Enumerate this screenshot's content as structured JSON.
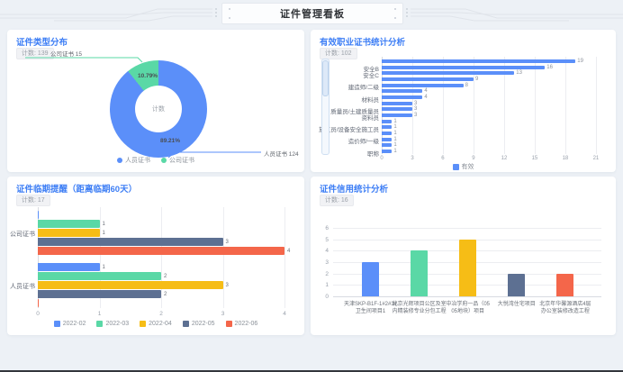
{
  "header": {
    "title": "证件管理看板"
  },
  "panels": [
    {
      "title": "证件类型分布",
      "count_badge": "计数: 139"
    },
    {
      "title": "有效职业证书统计分析",
      "count_badge": "计数: 102"
    },
    {
      "title": "证件临期提醒（距离临期60天）",
      "count_badge": "计数: 17"
    },
    {
      "title": "证件信用统计分析",
      "count_badge": "计数: 16"
    }
  ],
  "colors": {
    "accent_title": "#3d7ef5",
    "blue": "#5B8FF9",
    "green": "#5AD8A6",
    "yellow": "#F6BD16",
    "slate": "#5D7092",
    "red": "#F4664A"
  },
  "chart_data": [
    {
      "type": "pie",
      "title": "证件类型分布",
      "center_label": "计数",
      "total": 139,
      "slices": [
        {
          "name": "人员证书",
          "value": 124,
          "pct_label": "89.21%",
          "color": "#5B8FF9"
        },
        {
          "name": "公司证书",
          "value": 15,
          "pct_label": "10.79%",
          "color": "#5AD8A6"
        }
      ],
      "callouts": [
        {
          "text": "公司证书 15",
          "color": "#5AD8A6"
        },
        {
          "text": "人员证书 124",
          "color": "#5B8FF9"
        }
      ],
      "legend": [
        {
          "name": "人员证书",
          "color": "#5B8FF9"
        },
        {
          "name": "公司证书",
          "color": "#5AD8A6"
        }
      ],
      "legend_position": "bottom"
    },
    {
      "type": "bar",
      "orientation": "horizontal",
      "title": "有效职业证书统计分析",
      "series_name": "有效",
      "bar_color": "#5B8FF9",
      "categories": [
        "",
        "安全B",
        "安全C",
        "",
        "建造师/二级",
        "",
        "材料员",
        "",
        "质量员/土建质量员",
        "资料员",
        "",
        "施工员/设备安全施工员",
        "",
        "造价师/一级",
        "",
        "职称"
      ],
      "values": [
        19,
        16,
        13,
        9,
        8,
        4,
        4,
        3,
        3,
        3,
        1,
        1,
        1,
        1,
        1,
        1
      ],
      "xticks": [
        0,
        3,
        6,
        9,
        12,
        15,
        18,
        21
      ],
      "xlim": [
        0,
        21
      ],
      "has_scrollbar": true,
      "legend": [
        {
          "name": "有效",
          "color": "#5B8FF9"
        }
      ],
      "legend_position": "bottom"
    },
    {
      "type": "bar",
      "orientation": "horizontal",
      "grouped": true,
      "title": "证件临期提醒（距离临期60天）",
      "categories": [
        "公司证书",
        "人员证书"
      ],
      "series": [
        {
          "name": "2022-02",
          "color": "#5B8FF9",
          "values": [
            0,
            1
          ]
        },
        {
          "name": "2022-03",
          "color": "#5AD8A6",
          "values": [
            1,
            2
          ]
        },
        {
          "name": "2022-04",
          "color": "#F6BD16",
          "values": [
            1,
            3
          ]
        },
        {
          "name": "2022-05",
          "color": "#5D7092",
          "values": [
            3,
            2
          ]
        },
        {
          "name": "2022-06",
          "color": "#F4664A",
          "values": [
            4,
            0
          ]
        }
      ],
      "xticks": [
        0,
        1,
        2,
        3,
        4
      ],
      "xlim": [
        0,
        4
      ],
      "legend_position": "bottom"
    },
    {
      "type": "bar",
      "orientation": "vertical",
      "title": "证件信用统计分析",
      "categories": [
        "天津SKP-B1F-1#2#3#\n卫生间项目1",
        "北京光辉项目公区及室\n内精装修专业分包工程",
        "中冶学府一品（05\n05地块）项目",
        "大悦湾住宅项目",
        "北京年华馨源酒店4层\n办公室装修改造工程"
      ],
      "values": [
        3,
        4,
        5,
        2,
        2
      ],
      "bar_colors": [
        "#5B8FF9",
        "#5AD8A6",
        "#F6BD16",
        "#5D7092",
        "#F4664A"
      ],
      "yticks": [
        0,
        1,
        2,
        3,
        4,
        5,
        6
      ],
      "ylim": [
        0,
        6
      ],
      "grid": true
    }
  ]
}
